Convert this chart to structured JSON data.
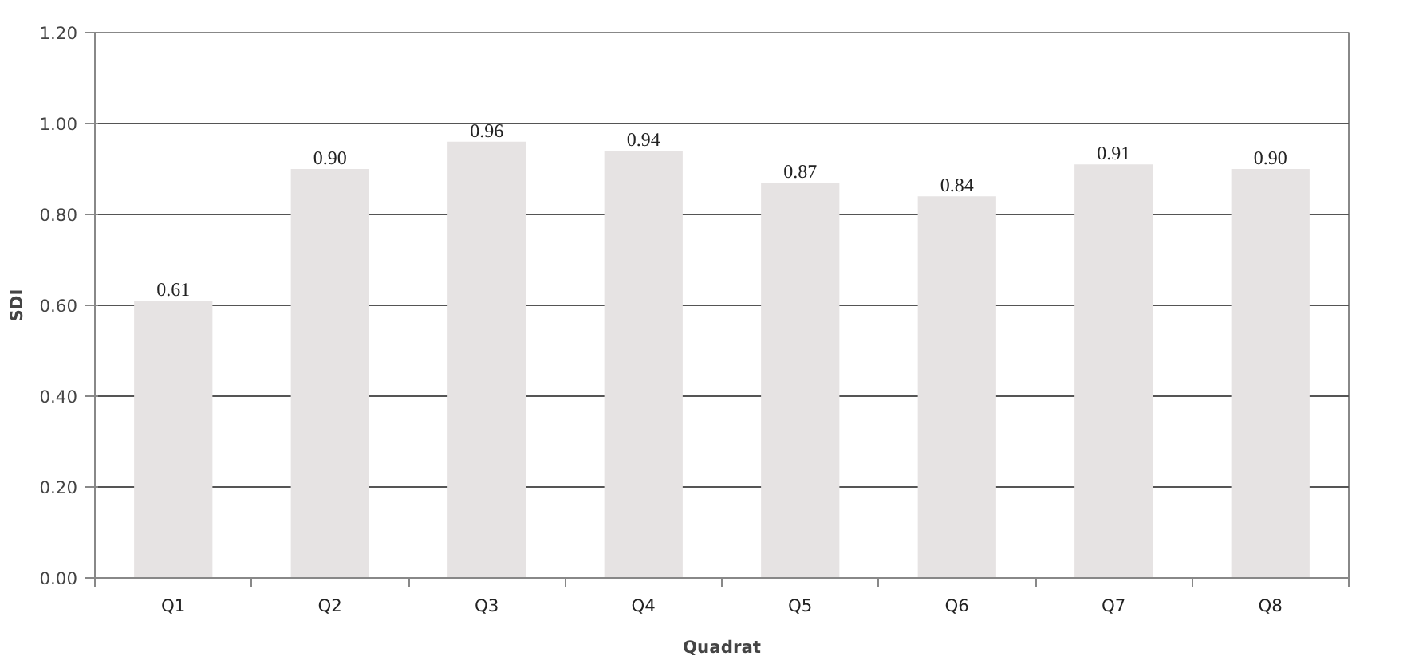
{
  "chart_data": {
    "type": "bar",
    "xlabel": "Quadrat",
    "ylabel": "SDI",
    "categories": [
      "Q1",
      "Q2",
      "Q3",
      "Q4",
      "Q5",
      "Q6",
      "Q7",
      "Q8"
    ],
    "values": [
      0.61,
      0.9,
      0.96,
      0.94,
      0.87,
      0.84,
      0.91,
      0.9
    ],
    "value_labels": [
      "0.61",
      "0.90",
      "0.96",
      "0.94",
      "0.87",
      "0.84",
      "0.91",
      "0.90"
    ],
    "color": "#e6e3e3",
    "ylim": [
      0,
      1.2
    ],
    "yticks": [
      {
        "value": 0,
        "label": "0.00"
      },
      {
        "value": 0.2,
        "label": "0.20"
      },
      {
        "value": 0.4,
        "label": "0.40"
      },
      {
        "value": 0.6,
        "label": "0.60"
      },
      {
        "value": 0.8,
        "label": "0.80"
      },
      {
        "value": 1.0,
        "label": "1.00"
      },
      {
        "value": 1.2,
        "label": "1.20"
      }
    ],
    "grid": "y"
  }
}
